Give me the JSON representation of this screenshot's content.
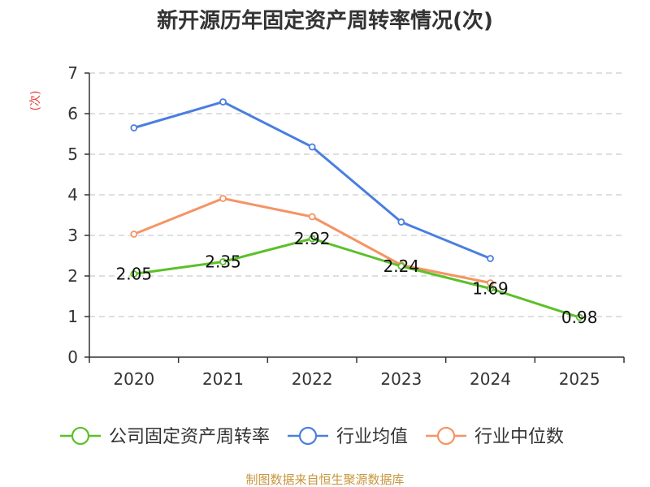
{
  "chart_data": {
    "type": "line",
    "title": "新开源历年固定资产周转率情况(次)",
    "ylabel": "(次)",
    "xlabel": "",
    "categories": [
      "2020",
      "2021",
      "2022",
      "2023",
      "2024",
      "2025"
    ],
    "ylim": [
      0,
      7
    ],
    "yticks": [
      "0",
      "1",
      "2",
      "3",
      "4",
      "5",
      "6",
      "7"
    ],
    "grid": true,
    "legend_position": "bottom",
    "series": [
      {
        "name": "公司固定资产周转率",
        "color": "#5bc02a",
        "values": [
          2.05,
          2.35,
          2.92,
          2.24,
          1.69,
          0.98
        ],
        "labels": [
          "2.05",
          "2.35",
          "2.92",
          "2.24",
          "1.69",
          "0.98"
        ]
      },
      {
        "name": "行业均值",
        "color": "#4a7fde",
        "values": [
          5.65,
          6.29,
          5.18,
          3.33,
          2.43,
          null
        ]
      },
      {
        "name": "行业中位数",
        "color": "#f59464",
        "values": [
          3.03,
          3.91,
          3.46,
          2.27,
          1.83,
          null
        ]
      }
    ],
    "source": "制图数据来自恒生聚源数据库"
  }
}
